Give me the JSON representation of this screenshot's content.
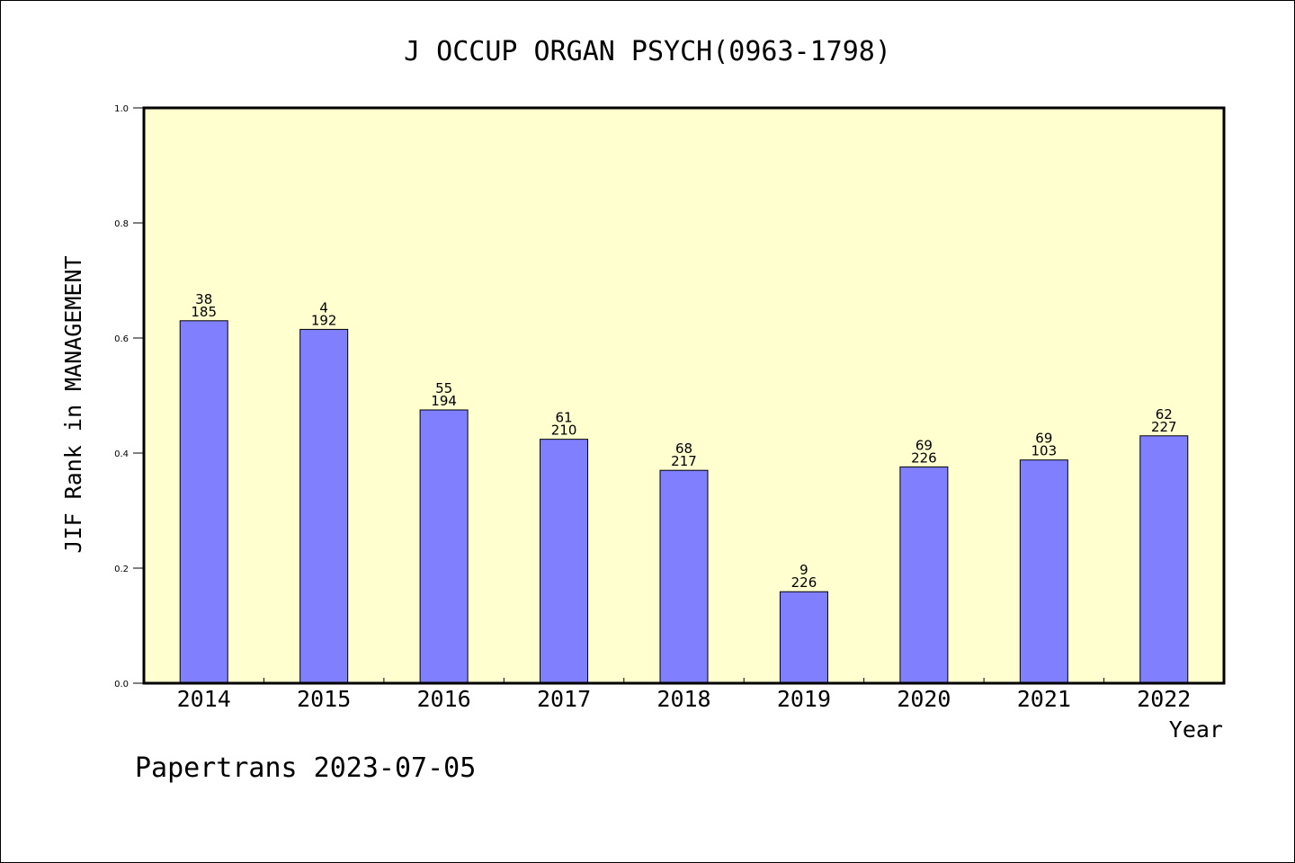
{
  "chart_data": {
    "type": "bar",
    "title": "J OCCUP ORGAN PSYCH(0963-1798)",
    "ylabel": "JIF Rank in MANAGEMENT",
    "xlabel": "Year",
    "categories": [
      "2014",
      "2015",
      "2016",
      "2017",
      "2018",
      "2019",
      "2020",
      "2021",
      "2022"
    ],
    "values": [
      0.63,
      0.615,
      0.475,
      0.424,
      0.37,
      0.159,
      0.376,
      0.388,
      0.43
    ],
    "rank_labels": [
      "38",
      "4",
      "55",
      "61",
      "68",
      "9",
      "69",
      "69",
      "62"
    ],
    "total_labels": [
      "185",
      "192",
      "194",
      "210",
      "217",
      "226",
      "226",
      "103",
      "227"
    ],
    "ylim": [
      0,
      1.0
    ],
    "yticks": [
      "0.0",
      "0.2",
      "0.4",
      "0.6",
      "0.8",
      "1.0"
    ],
    "plot_background": "#ffffd0",
    "bar_color": "#8080ff",
    "grid": false
  },
  "footer": "Papertrans 2023-07-05"
}
